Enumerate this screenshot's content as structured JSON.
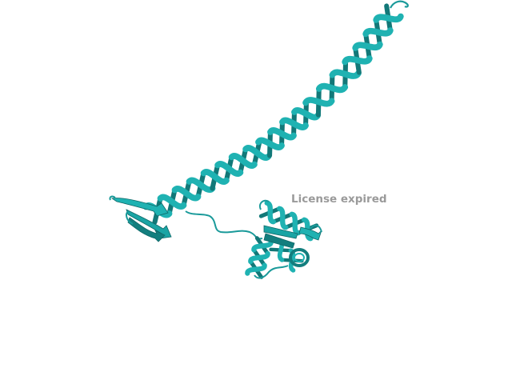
{
  "scene": {
    "background_color": "#ffffff",
    "ribbon_color": "#1fb2b2",
    "ribbon_dark_color": "#127878",
    "coil_color": "#1a9a9a"
  },
  "watermark": {
    "text": "License expired",
    "color": "#9a9a9a"
  }
}
